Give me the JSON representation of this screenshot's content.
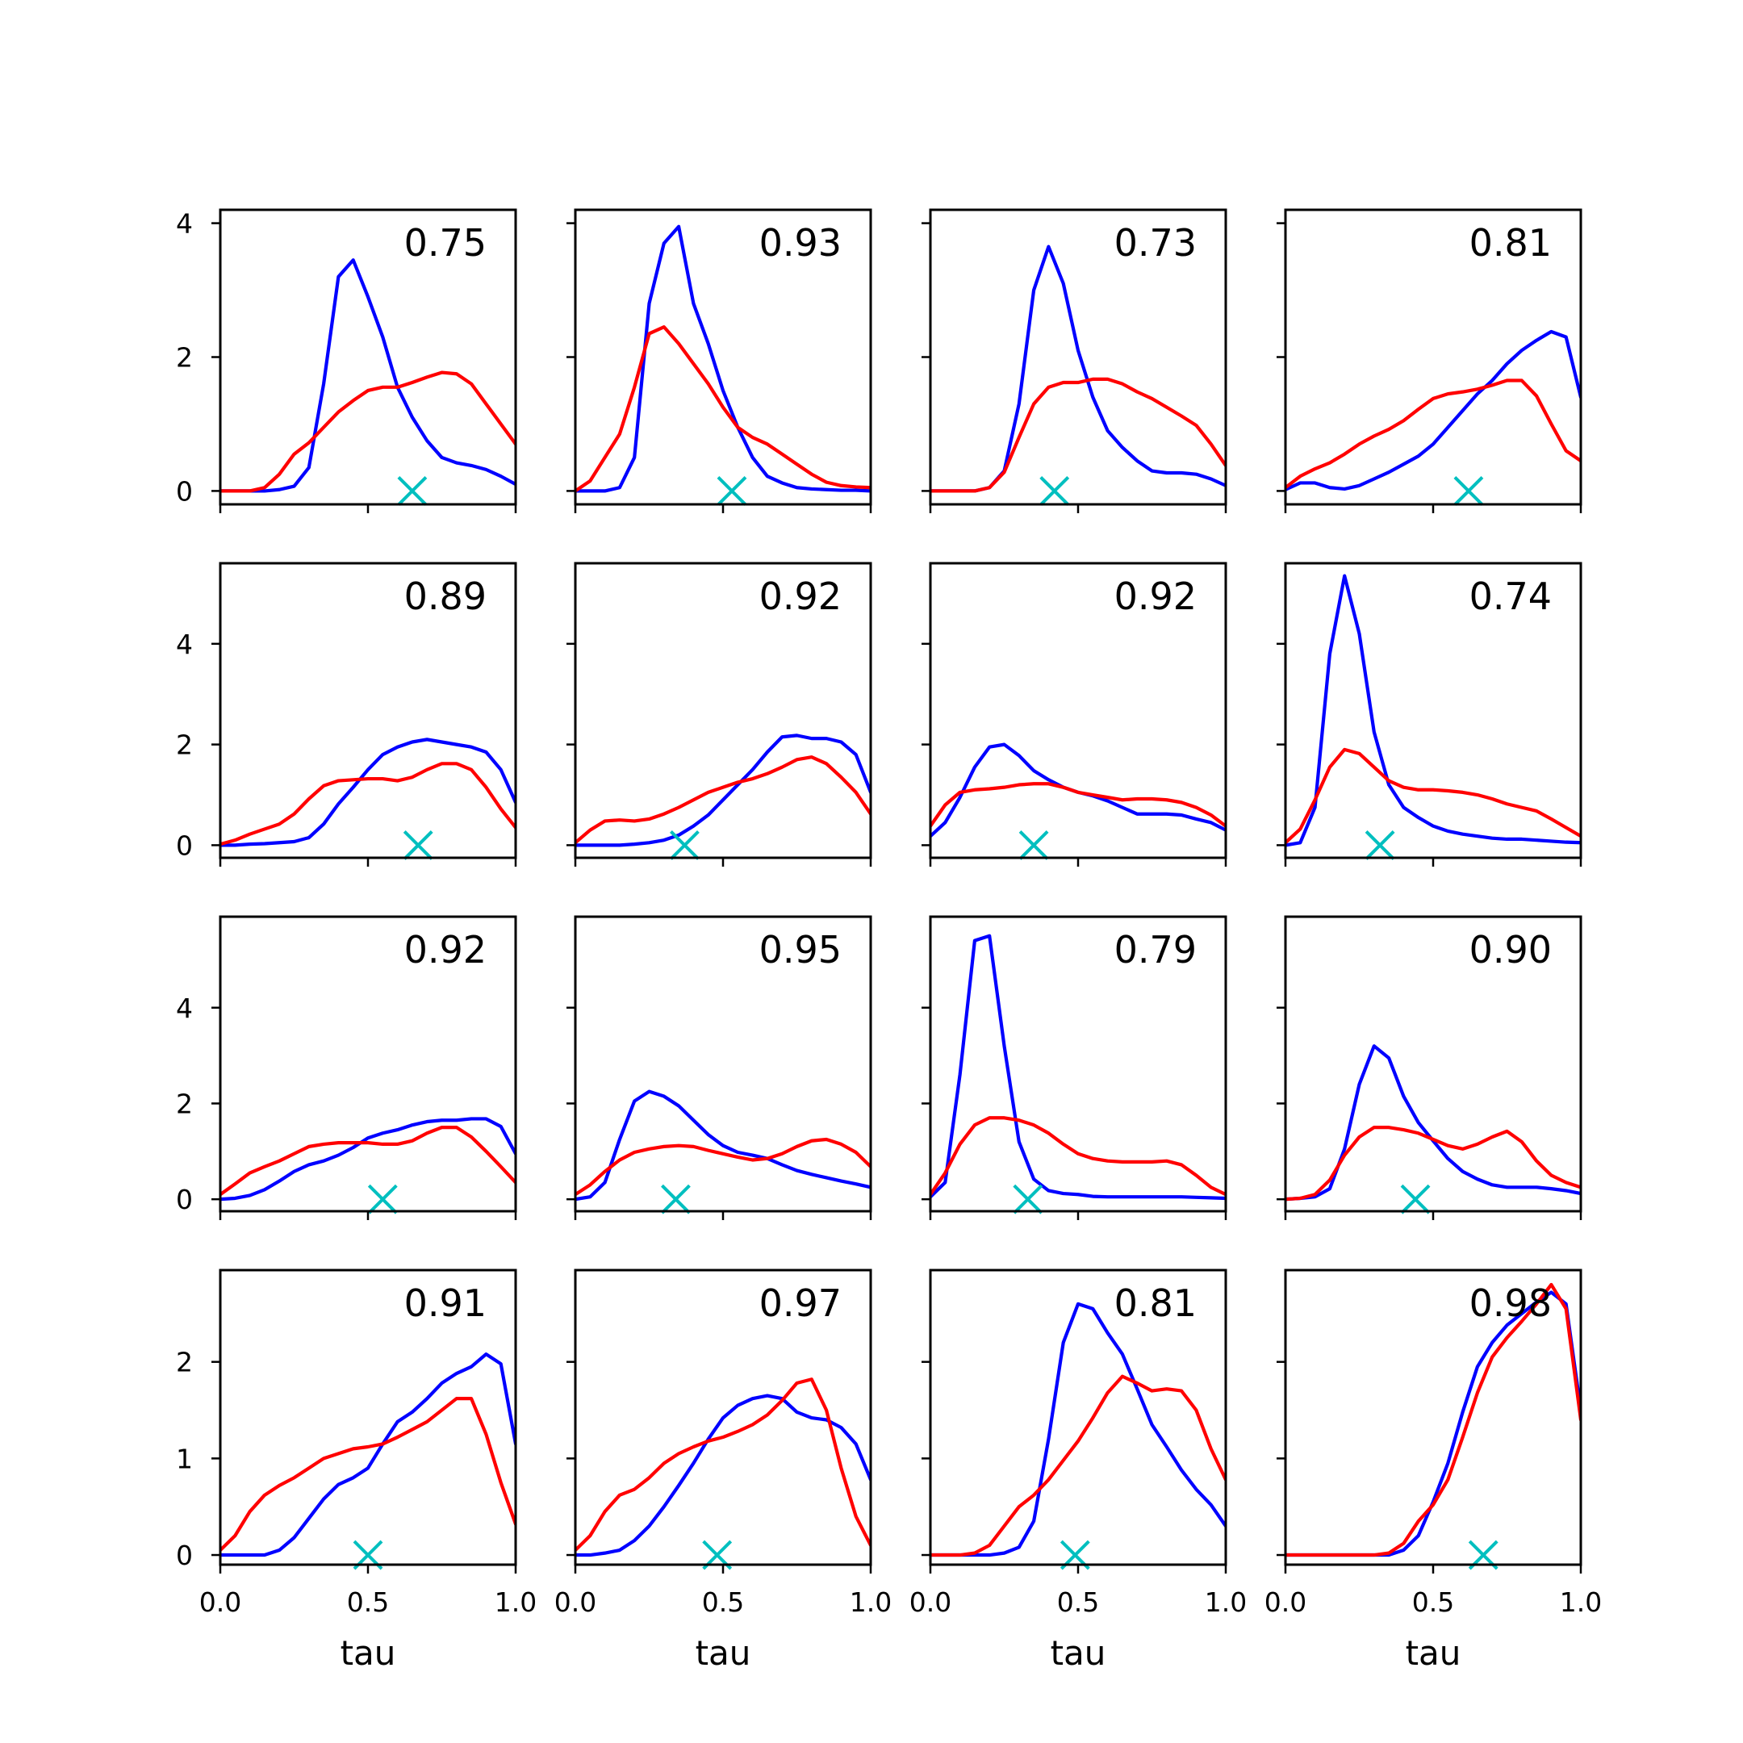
{
  "chart_data": {
    "type": "line",
    "layout": "4x4 grid of small multiples, shared x axis",
    "colors": {
      "series_a": "#0000ff",
      "series_b": "#ff0000",
      "marker": "#00bfbf"
    },
    "xlabel": "tau",
    "xlim": [
      0.0,
      1.0
    ],
    "xticks": [
      "0.0",
      "0.5",
      "1.0"
    ],
    "x": [
      0.0,
      0.05,
      0.1,
      0.15,
      0.2,
      0.25,
      0.3,
      0.35,
      0.4,
      0.45,
      0.5,
      0.55,
      0.6,
      0.65,
      0.7,
      0.75,
      0.8,
      0.85,
      0.9,
      0.95,
      1.0
    ],
    "rows": [
      {
        "ylim": [
          -0.2,
          4.2
        ],
        "yticks": [
          "0",
          "2",
          "4"
        ],
        "ytick_values": [
          0,
          2,
          4
        ]
      },
      {
        "ylim": [
          -0.25,
          5.6
        ],
        "yticks": [
          "0",
          "2",
          "4"
        ],
        "ytick_values": [
          0,
          2,
          4
        ]
      },
      {
        "ylim": [
          -0.25,
          5.9
        ],
        "yticks": [
          "0",
          "2",
          "4"
        ],
        "ytick_values": [
          0,
          2,
          4
        ]
      },
      {
        "ylim": [
          -0.1,
          2.95
        ],
        "yticks": [
          "0",
          "1",
          "2"
        ],
        "ytick_values": [
          0,
          1,
          2
        ]
      }
    ],
    "panels": [
      {
        "label": "0.75",
        "marker_x": 0.65,
        "series": [
          {
            "values": [
              0.0,
              0.0,
              0.0,
              0.0,
              0.02,
              0.07,
              0.35,
              1.6,
              3.2,
              3.45,
              2.9,
              2.3,
              1.55,
              1.1,
              0.75,
              0.5,
              0.42,
              0.38,
              0.32,
              0.22,
              0.1
            ]
          },
          {
            "values": [
              0.0,
              0.0,
              0.0,
              0.05,
              0.25,
              0.55,
              0.72,
              0.95,
              1.18,
              1.35,
              1.5,
              1.55,
              1.55,
              1.62,
              1.7,
              1.77,
              1.75,
              1.6,
              1.3,
              1.0,
              0.7
            ]
          }
        ]
      },
      {
        "label": "0.93",
        "marker_x": 0.53,
        "series": [
          {
            "values": [
              0.0,
              0.0,
              0.0,
              0.05,
              0.5,
              2.8,
              3.7,
              3.95,
              2.8,
              2.2,
              1.5,
              0.95,
              0.5,
              0.22,
              0.12,
              0.05,
              0.03,
              0.02,
              0.01,
              0.01,
              0.0
            ]
          },
          {
            "values": [
              0.0,
              0.15,
              0.5,
              0.85,
              1.55,
              2.35,
              2.45,
              2.2,
              1.9,
              1.6,
              1.25,
              0.95,
              0.8,
              0.7,
              0.55,
              0.4,
              0.25,
              0.13,
              0.08,
              0.06,
              0.05
            ]
          }
        ]
      },
      {
        "label": "0.73",
        "marker_x": 0.42,
        "series": [
          {
            "values": [
              0.0,
              0.0,
              0.0,
              0.0,
              0.05,
              0.3,
              1.3,
              3.0,
              3.65,
              3.1,
              2.1,
              1.4,
              0.9,
              0.65,
              0.45,
              0.3,
              0.27,
              0.27,
              0.25,
              0.18,
              0.08
            ]
          },
          {
            "values": [
              0.0,
              0.0,
              0.0,
              0.0,
              0.05,
              0.28,
              0.8,
              1.3,
              1.55,
              1.62,
              1.62,
              1.67,
              1.67,
              1.6,
              1.48,
              1.38,
              1.25,
              1.12,
              0.98,
              0.7,
              0.38
            ]
          }
        ]
      },
      {
        "label": "0.81",
        "marker_x": 0.62,
        "series": [
          {
            "values": [
              0.02,
              0.12,
              0.12,
              0.05,
              0.03,
              0.08,
              0.18,
              0.28,
              0.4,
              0.52,
              0.7,
              0.95,
              1.2,
              1.45,
              1.65,
              1.9,
              2.1,
              2.25,
              2.38,
              2.3,
              1.4
            ]
          },
          {
            "values": [
              0.05,
              0.22,
              0.33,
              0.42,
              0.55,
              0.7,
              0.82,
              0.92,
              1.05,
              1.22,
              1.38,
              1.45,
              1.48,
              1.52,
              1.58,
              1.65,
              1.65,
              1.42,
              1.0,
              0.6,
              0.45
            ]
          }
        ]
      },
      {
        "label": "0.89",
        "marker_x": 0.67,
        "series": [
          {
            "values": [
              0.0,
              0.0,
              0.02,
              0.03,
              0.05,
              0.07,
              0.15,
              0.42,
              0.82,
              1.15,
              1.5,
              1.8,
              1.95,
              2.05,
              2.1,
              2.05,
              2.0,
              1.95,
              1.85,
              1.5,
              0.85
            ]
          },
          {
            "values": [
              0.02,
              0.1,
              0.22,
              0.32,
              0.42,
              0.62,
              0.92,
              1.18,
              1.28,
              1.3,
              1.32,
              1.32,
              1.28,
              1.35,
              1.5,
              1.62,
              1.62,
              1.5,
              1.15,
              0.72,
              0.35
            ]
          }
        ]
      },
      {
        "label": "0.92",
        "marker_x": 0.37,
        "series": [
          {
            "values": [
              0.0,
              0.0,
              0.0,
              0.0,
              0.02,
              0.05,
              0.1,
              0.2,
              0.38,
              0.6,
              0.9,
              1.2,
              1.5,
              1.85,
              2.15,
              2.18,
              2.12,
              2.12,
              2.05,
              1.8,
              1.05
            ]
          },
          {
            "values": [
              0.05,
              0.3,
              0.48,
              0.5,
              0.48,
              0.52,
              0.62,
              0.75,
              0.9,
              1.05,
              1.15,
              1.25,
              1.32,
              1.42,
              1.55,
              1.7,
              1.75,
              1.62,
              1.35,
              1.05,
              0.62
            ]
          }
        ]
      },
      {
        "label": "0.92",
        "marker_x": 0.35,
        "series": [
          {
            "values": [
              0.18,
              0.45,
              0.95,
              1.55,
              1.95,
              2.0,
              1.78,
              1.48,
              1.3,
              1.15,
              1.05,
              0.98,
              0.88,
              0.75,
              0.62,
              0.62,
              0.62,
              0.6,
              0.52,
              0.45,
              0.3
            ]
          },
          {
            "values": [
              0.38,
              0.8,
              1.05,
              1.1,
              1.12,
              1.15,
              1.2,
              1.22,
              1.22,
              1.15,
              1.05,
              1.0,
              0.95,
              0.9,
              0.92,
              0.92,
              0.9,
              0.85,
              0.75,
              0.6,
              0.38
            ]
          }
        ]
      },
      {
        "label": "0.74",
        "marker_x": 0.32,
        "series": [
          {
            "values": [
              0.0,
              0.05,
              0.75,
              3.8,
              5.35,
              4.2,
              2.25,
              1.2,
              0.75,
              0.55,
              0.38,
              0.28,
              0.22,
              0.18,
              0.14,
              0.12,
              0.12,
              0.1,
              0.08,
              0.06,
              0.05
            ]
          },
          {
            "values": [
              0.05,
              0.32,
              0.9,
              1.55,
              1.9,
              1.82,
              1.55,
              1.28,
              1.15,
              1.1,
              1.1,
              1.08,
              1.05,
              1.0,
              0.92,
              0.82,
              0.75,
              0.68,
              0.52,
              0.35,
              0.18
            ]
          }
        ]
      },
      {
        "label": "0.92",
        "marker_x": 0.55,
        "series": [
          {
            "values": [
              0.0,
              0.02,
              0.08,
              0.2,
              0.38,
              0.58,
              0.72,
              0.8,
              0.92,
              1.08,
              1.28,
              1.38,
              1.45,
              1.55,
              1.62,
              1.65,
              1.65,
              1.68,
              1.68,
              1.52,
              0.95
            ]
          },
          {
            "values": [
              0.1,
              0.32,
              0.55,
              0.68,
              0.8,
              0.95,
              1.1,
              1.15,
              1.18,
              1.18,
              1.18,
              1.15,
              1.15,
              1.22,
              1.38,
              1.5,
              1.5,
              1.3,
              1.0,
              0.68,
              0.35
            ]
          }
        ]
      },
      {
        "label": "0.95",
        "marker_x": 0.34,
        "series": [
          {
            "values": [
              0.0,
              0.05,
              0.35,
              1.25,
              2.05,
              2.25,
              2.15,
              1.95,
              1.65,
              1.35,
              1.12,
              0.98,
              0.92,
              0.85,
              0.72,
              0.6,
              0.52,
              0.45,
              0.38,
              0.32,
              0.25
            ]
          },
          {
            "values": [
              0.1,
              0.3,
              0.58,
              0.82,
              0.98,
              1.05,
              1.1,
              1.12,
              1.1,
              1.02,
              0.95,
              0.88,
              0.82,
              0.85,
              0.95,
              1.1,
              1.22,
              1.25,
              1.15,
              0.98,
              0.68
            ]
          }
        ]
      },
      {
        "label": "0.79",
        "marker_x": 0.33,
        "series": [
          {
            "values": [
              0.05,
              0.35,
              2.6,
              5.4,
              5.5,
              3.2,
              1.2,
              0.42,
              0.18,
              0.12,
              0.1,
              0.06,
              0.05,
              0.05,
              0.05,
              0.05,
              0.05,
              0.05,
              0.04,
              0.03,
              0.02
            ]
          },
          {
            "values": [
              0.1,
              0.55,
              1.15,
              1.55,
              1.7,
              1.7,
              1.65,
              1.55,
              1.38,
              1.15,
              0.95,
              0.85,
              0.8,
              0.78,
              0.78,
              0.78,
              0.8,
              0.72,
              0.5,
              0.25,
              0.1
            ]
          }
        ]
      },
      {
        "label": "0.90",
        "marker_x": 0.44,
        "series": [
          {
            "values": [
              0.0,
              0.02,
              0.05,
              0.22,
              1.05,
              2.4,
              3.2,
              2.95,
              2.15,
              1.6,
              1.22,
              0.85,
              0.58,
              0.42,
              0.3,
              0.25,
              0.25,
              0.25,
              0.22,
              0.18,
              0.12
            ]
          },
          {
            "values": [
              0.0,
              0.02,
              0.1,
              0.4,
              0.92,
              1.3,
              1.5,
              1.5,
              1.45,
              1.38,
              1.25,
              1.12,
              1.05,
              1.15,
              1.3,
              1.42,
              1.2,
              0.8,
              0.5,
              0.35,
              0.25
            ]
          }
        ]
      },
      {
        "label": "0.91",
        "marker_x": 0.5,
        "series": [
          {
            "values": [
              0.0,
              0.0,
              0.0,
              0.0,
              0.05,
              0.18,
              0.38,
              0.58,
              0.73,
              0.8,
              0.9,
              1.15,
              1.38,
              1.48,
              1.62,
              1.78,
              1.88,
              1.95,
              2.08,
              1.98,
              1.15
            ]
          },
          {
            "values": [
              0.05,
              0.2,
              0.45,
              0.62,
              0.72,
              0.8,
              0.9,
              1.0,
              1.05,
              1.1,
              1.12,
              1.15,
              1.22,
              1.3,
              1.38,
              1.5,
              1.62,
              1.62,
              1.25,
              0.75,
              0.32
            ]
          }
        ]
      },
      {
        "label": "0.97",
        "marker_x": 0.48,
        "series": [
          {
            "values": [
              0.0,
              0.0,
              0.02,
              0.05,
              0.15,
              0.3,
              0.5,
              0.72,
              0.95,
              1.2,
              1.42,
              1.55,
              1.62,
              1.65,
              1.62,
              1.48,
              1.42,
              1.4,
              1.32,
              1.15,
              0.78
            ]
          },
          {
            "values": [
              0.05,
              0.2,
              0.45,
              0.62,
              0.68,
              0.8,
              0.95,
              1.05,
              1.12,
              1.18,
              1.22,
              1.28,
              1.35,
              1.45,
              1.6,
              1.78,
              1.82,
              1.5,
              0.9,
              0.4,
              0.1
            ]
          }
        ]
      },
      {
        "label": "0.81",
        "marker_x": 0.49,
        "series": [
          {
            "values": [
              0.0,
              0.0,
              0.0,
              0.0,
              0.0,
              0.02,
              0.08,
              0.35,
              1.2,
              2.2,
              2.6,
              2.55,
              2.3,
              2.08,
              1.72,
              1.35,
              1.12,
              0.88,
              0.68,
              0.52,
              0.3
            ]
          },
          {
            "values": [
              0.0,
              0.0,
              0.0,
              0.02,
              0.1,
              0.3,
              0.5,
              0.62,
              0.78,
              0.98,
              1.18,
              1.42,
              1.68,
              1.85,
              1.78,
              1.7,
              1.72,
              1.7,
              1.5,
              1.1,
              0.78
            ]
          }
        ]
      },
      {
        "label": "0.98",
        "marker_x": 0.67,
        "series": [
          {
            "values": [
              0.0,
              0.0,
              0.0,
              0.0,
              0.0,
              0.0,
              0.0,
              0.0,
              0.05,
              0.2,
              0.55,
              0.95,
              1.48,
              1.95,
              2.2,
              2.38,
              2.5,
              2.62,
              2.72,
              2.6,
              1.5
            ]
          },
          {
            "values": [
              0.0,
              0.0,
              0.0,
              0.0,
              0.0,
              0.0,
              0.0,
              0.02,
              0.12,
              0.35,
              0.52,
              0.78,
              1.22,
              1.68,
              2.05,
              2.25,
              2.42,
              2.6,
              2.8,
              2.55,
              1.4
            ]
          }
        ]
      }
    ]
  }
}
